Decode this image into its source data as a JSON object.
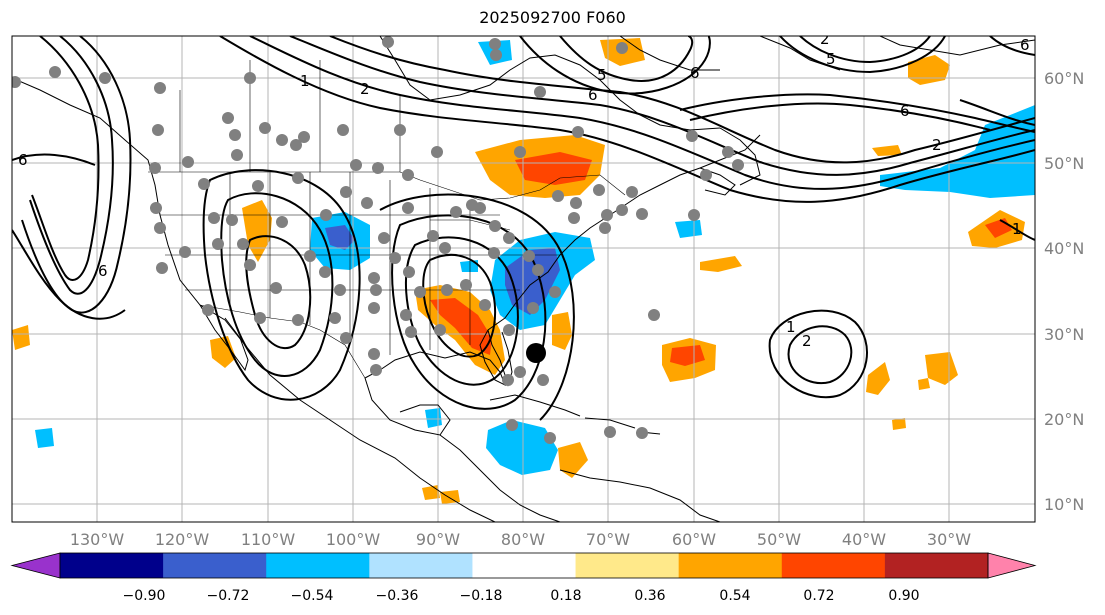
{
  "title": "2025092700 F060",
  "map": {
    "lon_labels": [
      "130°W",
      "120°W",
      "110°W",
      "100°W",
      "90°W",
      "80°W",
      "70°W",
      "60°W",
      "50°W",
      "40°W",
      "30°W"
    ],
    "lat_labels": [
      "60°N",
      "50°N",
      "40°N",
      "30°N",
      "20°N",
      "10°N"
    ],
    "contour_labels": [
      "6",
      "2",
      "1",
      "5",
      "6",
      "6",
      "6",
      "1",
      "2",
      "6",
      "1",
      "2",
      "2",
      "5",
      "6"
    ]
  },
  "colorbar": {
    "ticks": [
      "−0.90",
      "−0.72",
      "−0.54",
      "−0.36",
      "−0.18",
      "0.18",
      "0.36",
      "0.54",
      "0.72",
      "0.90"
    ],
    "colors": [
      "#9932cc",
      "#00008b",
      "#3a5fcd",
      "#00bfff",
      "#b0e2ff",
      "#ffffff",
      "#ffe98a",
      "#ffa500",
      "#ff4500",
      "#b22222",
      "#ff82ab"
    ]
  }
}
